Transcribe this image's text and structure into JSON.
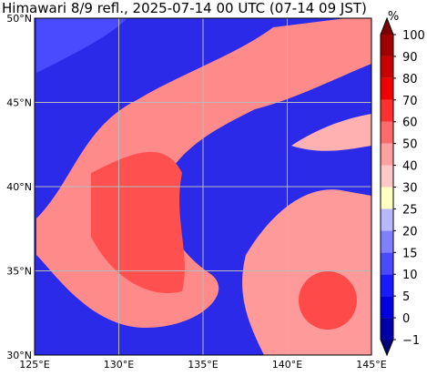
{
  "title": "Himawari 8/9 refl., 2025-07-14 00 UTC (07-14 09 JST)",
  "map": {
    "xlim": [
      125,
      145
    ],
    "ylim": [
      30,
      50
    ],
    "lon_ticks": [
      {
        "value": 125,
        "label": "125°E"
      },
      {
        "value": 130,
        "label": "130°E"
      },
      {
        "value": 135,
        "label": "135°E"
      },
      {
        "value": 140,
        "label": "140°E"
      },
      {
        "value": 145,
        "label": "145°E"
      }
    ],
    "lat_ticks": [
      {
        "value": 30,
        "label": "30°N"
      },
      {
        "value": 35,
        "label": "35°N"
      },
      {
        "value": 40,
        "label": "40°N"
      },
      {
        "value": 45,
        "label": "45°N"
      },
      {
        "value": 50,
        "label": "50°N"
      }
    ]
  },
  "colorbar": {
    "unit": "%",
    "levels": [
      {
        "value": -1,
        "label": "−1"
      },
      0,
      5,
      10,
      15,
      20,
      25,
      30,
      40,
      50,
      60,
      70,
      80,
      90,
      100
    ],
    "under_color": "#00007a",
    "over_color": "#7a0000",
    "colors": [
      "#0000a8",
      "#0000e0",
      "#1a1aff",
      "#4a4aff",
      "#8080ff",
      "#b8b8ff",
      "#ffffc0",
      "#ffc8c8",
      "#ffa0a0",
      "#ff6a6a",
      "#ff3030",
      "#f00000",
      "#c80000",
      "#a00000"
    ]
  }
}
